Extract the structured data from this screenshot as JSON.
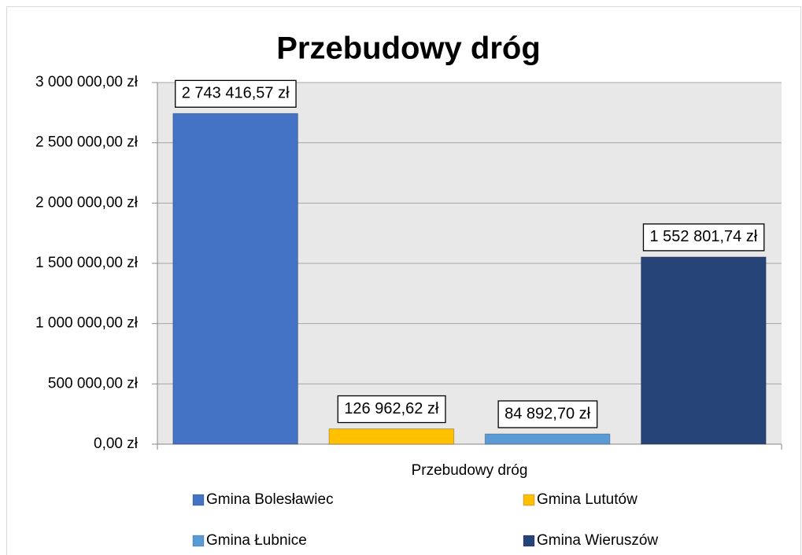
{
  "chart_data": {
    "type": "bar",
    "title": "Przebudowy dróg",
    "categories": [
      "Przebudowy dróg"
    ],
    "series": [
      {
        "name": "Gmina Bolesławiec",
        "color": "#4472c4",
        "values": [
          2743416.57
        ],
        "value_labels": [
          "2 743 416,57 zł"
        ]
      },
      {
        "name": "Gmina Lututów",
        "color": "#ffc000",
        "values": [
          126962.62
        ],
        "value_labels": [
          "126 962,62 zł"
        ]
      },
      {
        "name": "Gmina Łubnice",
        "color": "#5b9bd5",
        "values": [
          84892.7
        ],
        "value_labels": [
          "84 892,70 zł"
        ]
      },
      {
        "name": "Gmina Wieruszów",
        "color": "#264478",
        "values": [
          1552801.74
        ],
        "value_labels": [
          "1 552 801,74 zł"
        ]
      }
    ],
    "ylim": [
      0,
      3000000
    ],
    "yticks": [
      {
        "value": 0,
        "label": "0,00 zł"
      },
      {
        "value": 500000,
        "label": "500 000,00 zł"
      },
      {
        "value": 1000000,
        "label": "1 000 000,00 zł"
      },
      {
        "value": 1500000,
        "label": "1 500 000,00 zł"
      },
      {
        "value": 2000000,
        "label": "2 000 000,00 zł"
      },
      {
        "value": 2500000,
        "label": "2 500 000,00 zł"
      },
      {
        "value": 3000000,
        "label": "3 000 000,00 zł"
      }
    ],
    "grid": true,
    "legend": "bottom"
  }
}
